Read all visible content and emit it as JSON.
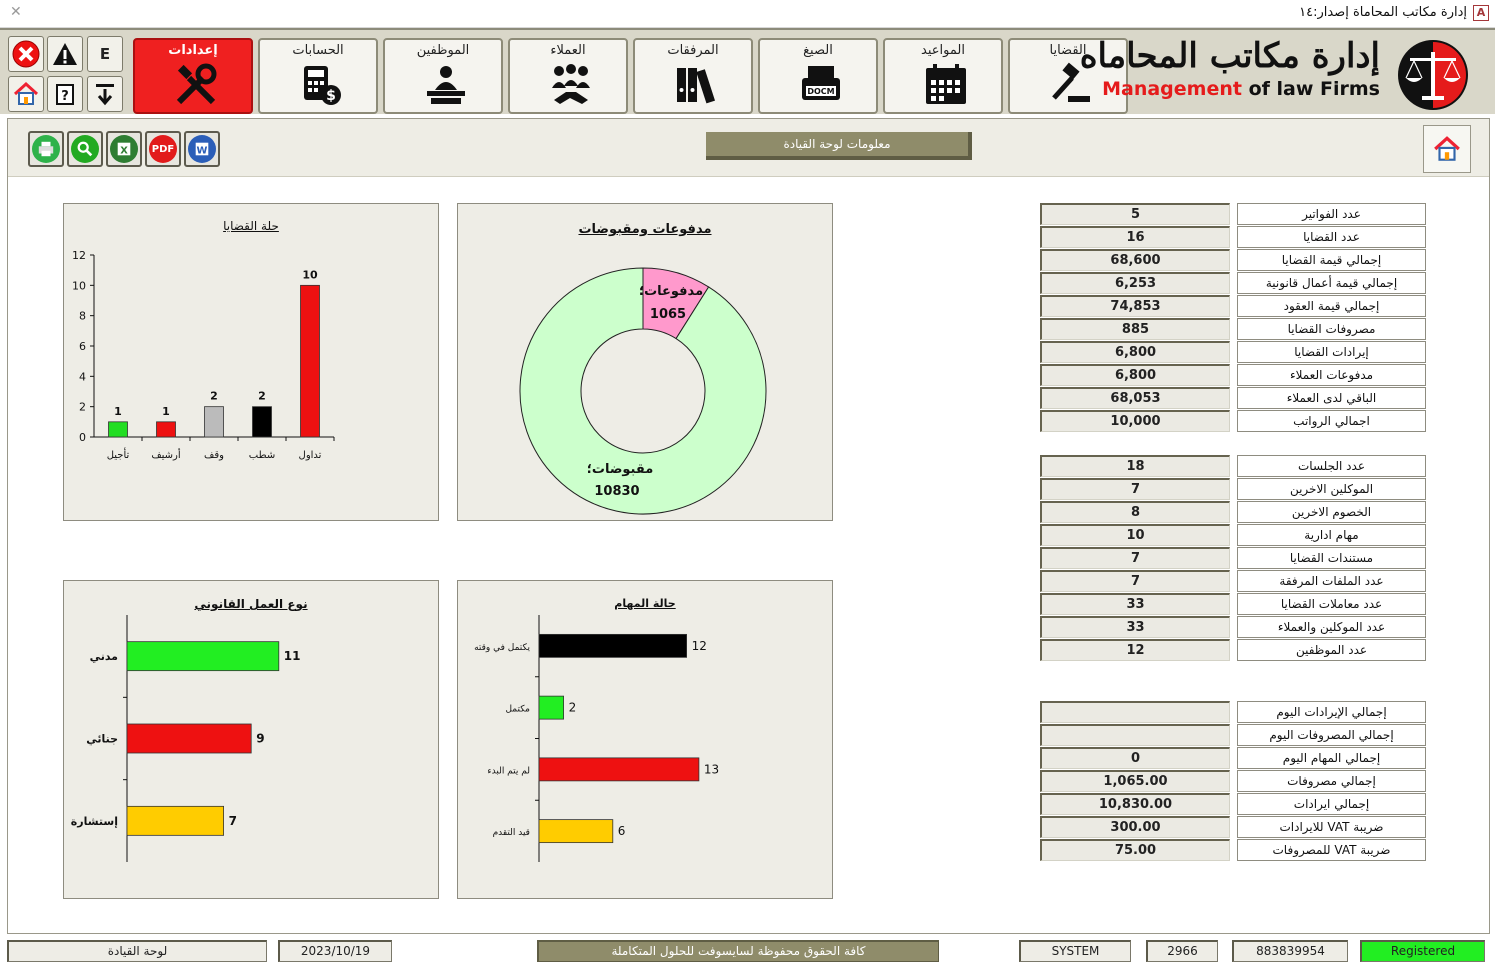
{
  "window": {
    "title": "إدارة مكاتب المحاماة إصدار:١٤",
    "app_icon": "A"
  },
  "ribbon": {
    "small_buttons": [
      {
        "name": "close-app-icon"
      },
      {
        "name": "warning-icon"
      },
      {
        "label": "E"
      },
      {
        "name": "home-icon"
      },
      {
        "name": "help-icon"
      },
      {
        "name": "download-icon"
      }
    ],
    "nav": [
      {
        "label": "إعدادات",
        "icon": "tools-icon",
        "active": true
      },
      {
        "label": "الحسابات",
        "icon": "calculator-money-icon"
      },
      {
        "label": "الموظفين",
        "icon": "employee-desk-icon"
      },
      {
        "label": "العملاء",
        "icon": "clients-handshake-icon"
      },
      {
        "label": "المرفقات",
        "icon": "binders-icon"
      },
      {
        "label": "الصيغ",
        "icon": "docm-printer-icon"
      },
      {
        "label": "المواعيد",
        "icon": "calendar-icon"
      },
      {
        "label": "القضايا",
        "icon": "gavel-icon"
      }
    ],
    "logo": {
      "arabic": "إدارة مكاتب المحاماه",
      "english_a": "Management",
      "english_b": " of law Firms"
    }
  },
  "toolbar": {
    "export": [
      "print-icon",
      "preview-icon",
      "excel-icon",
      "pdf-icon",
      "word-icon"
    ],
    "pdf_label": "PDF",
    "page_title": "معلومات لوحة القيادة"
  },
  "charts": {
    "case_status": {
      "title": "حلة القضايا",
      "chart_data": {
        "type": "bar",
        "categories": [
          "تأجيل",
          "أرشيف",
          "وقف",
          "شطب",
          "تداول"
        ],
        "values": [
          1,
          1,
          2,
          2,
          10
        ],
        "colors": [
          "#22dd22",
          "#ee1111",
          "#bbbbbb",
          "#000000",
          "#ee1111"
        ],
        "ylim": [
          0,
          12
        ],
        "yticks": [
          0,
          2,
          4,
          6,
          8,
          10,
          12
        ]
      }
    },
    "payments": {
      "title": "مدفوعات ومقبوضات",
      "chart_data": {
        "type": "pie",
        "categories": [
          "مدفوعات؛",
          "مقبوضات؛"
        ],
        "values": [
          1065,
          10830
        ],
        "colors": [
          "#ff99cc",
          "#ccffcc"
        ]
      }
    },
    "work_type": {
      "title": "نوع العمل القانوني",
      "chart_data": {
        "type": "bar",
        "categories": [
          "مدني",
          "جنائي",
          "إستشارة"
        ],
        "values": [
          11,
          9,
          7
        ],
        "colors": [
          "#22ee22",
          "#ee1111",
          "#ffcc00"
        ]
      }
    },
    "task_status": {
      "title": "حالة المهام",
      "chart_data": {
        "type": "bar",
        "categories": [
          "يكتمل في وقته",
          "مكتمل",
          "لم يتم البدء",
          "قيد التقدم"
        ],
        "values": [
          12,
          2,
          13,
          6
        ],
        "colors": [
          "#000000",
          "#22ee22",
          "#ee1111",
          "#ffcc00"
        ]
      }
    }
  },
  "stats_group1": [
    {
      "label": "عدد الفواتير",
      "value": "5"
    },
    {
      "label": "عدد القضايا",
      "value": "16"
    },
    {
      "label": "إجمالي قيمة القضايا",
      "value": "68,600"
    },
    {
      "label": "إجمالي قيمة أعمال قانونية",
      "value": "6,253"
    },
    {
      "label": "إجمالي قيمة العقود",
      "value": "74,853"
    },
    {
      "label": "مصروفات القضايا",
      "value": "885"
    },
    {
      "label": "إيرادات القضايا",
      "value": "6,800"
    },
    {
      "label": "مدفوعات العملاء",
      "value": "6,800"
    },
    {
      "label": "الباقي لدى العملاء",
      "value": "68,053"
    },
    {
      "label": "اجمالي الرواتب",
      "value": "10,000"
    }
  ],
  "stats_group2": [
    {
      "label": "عدد الجلسات",
      "value": "18"
    },
    {
      "label": "الموكلين الاخرين",
      "value": "7"
    },
    {
      "label": "الخصوم الاخرين",
      "value": "8"
    },
    {
      "label": "مهام ادارية",
      "value": "10"
    },
    {
      "label": "مستندات القضايا",
      "value": "7"
    },
    {
      "label": "عدد الملفات المرفقة",
      "value": "7"
    },
    {
      "label": "عدد معاملات القضايا",
      "value": "33"
    },
    {
      "label": "عدد الموكلين والعملاء",
      "value": "33"
    },
    {
      "label": "عدد الموظفين",
      "value": "12"
    }
  ],
  "stats_group3": [
    {
      "label": "إجمالي الإيرادات اليوم",
      "value": ""
    },
    {
      "label": "إجمالي المصروفات اليوم",
      "value": ""
    },
    {
      "label": "إجمالي المهام اليوم",
      "value": "0"
    },
    {
      "label": "إجمالي مصروفات",
      "value": "1,065.00"
    },
    {
      "label": "إجمالي ايرادات",
      "value": "10,830.00"
    },
    {
      "label": "ضريبة VAT للايرادات",
      "value": "300.00"
    },
    {
      "label": "ضريبة VAT للمصروفات",
      "value": "75.00"
    }
  ],
  "status": {
    "form_name": "لوحة القيادة",
    "date": "2023/10/19",
    "copyright": "كافة الحقوق محفوظة لسايسوفت للحلول المتكاملة",
    "user": "SYSTEM",
    "code": "2966",
    "serial": "883839954",
    "registration": "Registered"
  }
}
